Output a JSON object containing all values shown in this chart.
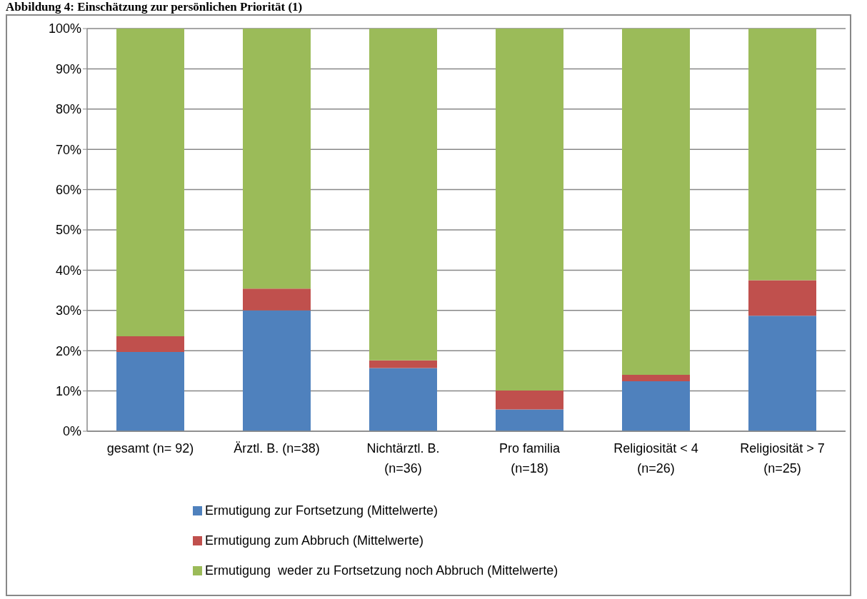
{
  "chart_data": {
    "type": "bar",
    "title": "Abbildung 4: Einschätzung zur persönlichen Priorität (1)",
    "stacked": true,
    "categories": [
      "gesamt (n= 92)",
      "Ärztl. B. (n=38)",
      "Nichtärztl. B. (n=36)",
      "Pro familia (n=18)",
      "Religiosität < 4 (n=26)",
      "Religiosität > 7 (n=25)"
    ],
    "series": [
      {
        "name": "Ermutigung zur Fortsetzung (Mittelwerte)",
        "color": "#4f81bd",
        "values": [
          19.7,
          30.0,
          15.7,
          5.4,
          12.4,
          28.7
        ]
      },
      {
        "name": "Ermutigung zum Abbruch (Mittelwerte)",
        "color": "#c0504d",
        "values": [
          3.9,
          5.4,
          1.9,
          4.7,
          1.6,
          8.8
        ]
      },
      {
        "name": "Ermutigung  weder zu Fortsetzung noch Abbruch (Mittelwerte)",
        "color": "#9bbb59",
        "values": [
          76.4,
          64.6,
          82.4,
          89.9,
          86.0,
          62.5
        ]
      }
    ],
    "ylim": [
      0,
      100
    ],
    "yticks": [
      {
        "value": 0,
        "label": "0%"
      },
      {
        "value": 10,
        "label": "10%"
      },
      {
        "value": 20,
        "label": "20%"
      },
      {
        "value": 30,
        "label": "30%"
      },
      {
        "value": 40,
        "label": "40%"
      },
      {
        "value": 50,
        "label": "50%"
      },
      {
        "value": 60,
        "label": "60%"
      },
      {
        "value": 70,
        "label": "70%"
      },
      {
        "value": 80,
        "label": "80%"
      },
      {
        "value": 90,
        "label": "90%"
      },
      {
        "value": 100,
        "label": "100%"
      }
    ],
    "grid": "y",
    "legend": "bottom"
  }
}
